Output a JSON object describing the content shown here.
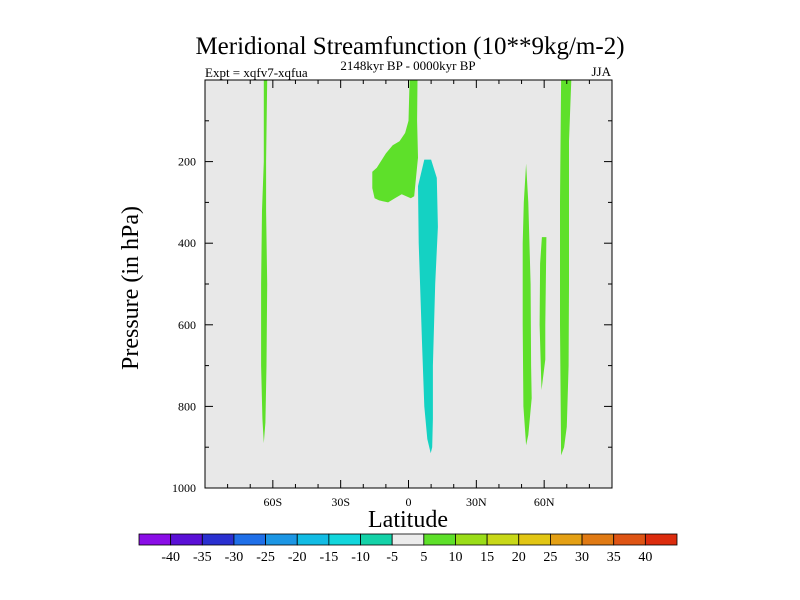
{
  "chart_data": {
    "type": "contour",
    "title": "Meridional Streamfunction (10**9kg/m-2)",
    "subtitle_left": "Expt = xqfv7-xqfua",
    "subtitle_center": "2148kyr BP - 0000kyr BP",
    "subtitle_right": "JJA",
    "xlabel": "Latitude",
    "ylabel": "Pressure (in hPa)",
    "xlim": [
      -90,
      90
    ],
    "ylim": [
      1000,
      0
    ],
    "x_ticks": [
      {
        "value": -60,
        "label": "60S"
      },
      {
        "value": -30,
        "label": "30S"
      },
      {
        "value": 0,
        "label": "0"
      },
      {
        "value": 30,
        "label": "30N"
      },
      {
        "value": 60,
        "label": "60N"
      }
    ],
    "y_ticks": [
      {
        "value": 200,
        "label": "200"
      },
      {
        "value": 400,
        "label": "400"
      },
      {
        "value": 600,
        "label": "600"
      },
      {
        "value": 800,
        "label": "800"
      },
      {
        "value": 1000,
        "label": "1000"
      }
    ],
    "background_color": "#e8e8e8",
    "regions": [
      {
        "name": "sh-high-lat-cell",
        "level": "5 to 10",
        "color": "#5ee02a",
        "points": [
          [
            -64,
            0
          ],
          [
            -62.5,
            0
          ],
          [
            -63,
            200
          ],
          [
            -63,
            320
          ],
          [
            -62.5,
            500
          ],
          [
            -62.8,
            700
          ],
          [
            -63.3,
            840
          ],
          [
            -64,
            890
          ],
          [
            -64.6,
            830
          ],
          [
            -65.2,
            700
          ],
          [
            -65.2,
            500
          ],
          [
            -64.8,
            320
          ],
          [
            -64,
            200
          ]
        ]
      },
      {
        "name": "eq-upper-cell-stem",
        "level": "5 to 10",
        "color": "#5ee02a",
        "points": [
          [
            0.5,
            0
          ],
          [
            4,
            0
          ],
          [
            3.8,
            100
          ],
          [
            4.2,
            190
          ],
          [
            3.5,
            200
          ],
          [
            0,
            205
          ],
          [
            0,
            100
          ]
        ]
      },
      {
        "name": "eq-upper-cell-branch",
        "level": "5 to 10",
        "color": "#5ee02a",
        "points": [
          [
            0,
            100
          ],
          [
            0.1,
            175
          ],
          [
            4.2,
            190
          ],
          [
            3.5,
            230
          ],
          [
            2.5,
            285
          ],
          [
            1,
            290
          ],
          [
            -3,
            280
          ],
          [
            -6,
            290
          ],
          [
            -9,
            300
          ],
          [
            -13,
            295
          ],
          [
            -15,
            290
          ],
          [
            -16,
            265
          ],
          [
            -16,
            225
          ],
          [
            -14,
            215
          ],
          [
            -10,
            180
          ],
          [
            -7,
            160
          ],
          [
            -4,
            150
          ],
          [
            -1.5,
            130
          ]
        ]
      },
      {
        "name": "eq-negative-cell",
        "level": "-10 to -5",
        "color": "#14d2c3",
        "points": [
          [
            7,
            195
          ],
          [
            10,
            195
          ],
          [
            12.5,
            240
          ],
          [
            13,
            360
          ],
          [
            11.8,
            500
          ],
          [
            10.8,
            700
          ],
          [
            10.8,
            830
          ],
          [
            10.5,
            900
          ],
          [
            9.8,
            915
          ],
          [
            8.3,
            880
          ],
          [
            7,
            800
          ],
          [
            6,
            650
          ],
          [
            4.5,
            400
          ],
          [
            4.2,
            260
          ]
        ]
      },
      {
        "name": "nh-midlat-cell",
        "level": "5 to 10",
        "color": "#5ee02a",
        "points": [
          [
            52,
            205
          ],
          [
            53,
            300
          ],
          [
            54,
            500
          ],
          [
            54.2,
            700
          ],
          [
            54.5,
            780
          ],
          [
            53,
            870
          ],
          [
            52,
            895
          ],
          [
            50.8,
            800
          ],
          [
            50.5,
            600
          ],
          [
            50.5,
            400
          ],
          [
            51,
            300
          ]
        ]
      },
      {
        "name": "nh-midlat-cell-secondary",
        "level": "5 to 10",
        "color": "#5ee02a",
        "points": [
          [
            59,
            385
          ],
          [
            61,
            385
          ],
          [
            60.5,
            600
          ],
          [
            60.5,
            685
          ],
          [
            58.8,
            760
          ],
          [
            58,
            600
          ],
          [
            58.2,
            450
          ]
        ]
      },
      {
        "name": "nh-high-lat-cell",
        "level": "5 to 10",
        "color": "#5ee02a",
        "points": [
          [
            67.5,
            0
          ],
          [
            72,
            0
          ],
          [
            71,
            150
          ],
          [
            71,
            500
          ],
          [
            70.8,
            700
          ],
          [
            70,
            850
          ],
          [
            68.8,
            900
          ],
          [
            67.5,
            920
          ],
          [
            67,
            600
          ],
          [
            67,
            300
          ]
        ]
      }
    ],
    "colorbar": {
      "labels": [
        "-40",
        "-35",
        "-30",
        "-25",
        "-20",
        "-15",
        "-10",
        "-5",
        "5",
        "10",
        "15",
        "20",
        "25",
        "30",
        "35",
        "40"
      ],
      "colors": [
        "#8a0ee6",
        "#5a10d6",
        "#2a30d0",
        "#1f6fe8",
        "#1c96e4",
        "#12bce4",
        "#12d6dc",
        "#14d2a8",
        "#ececec",
        "#5ee02a",
        "#9add18",
        "#c8d818",
        "#e2c614",
        "#e4a014",
        "#e07a14",
        "#de5414",
        "#dc2c0e"
      ]
    }
  }
}
